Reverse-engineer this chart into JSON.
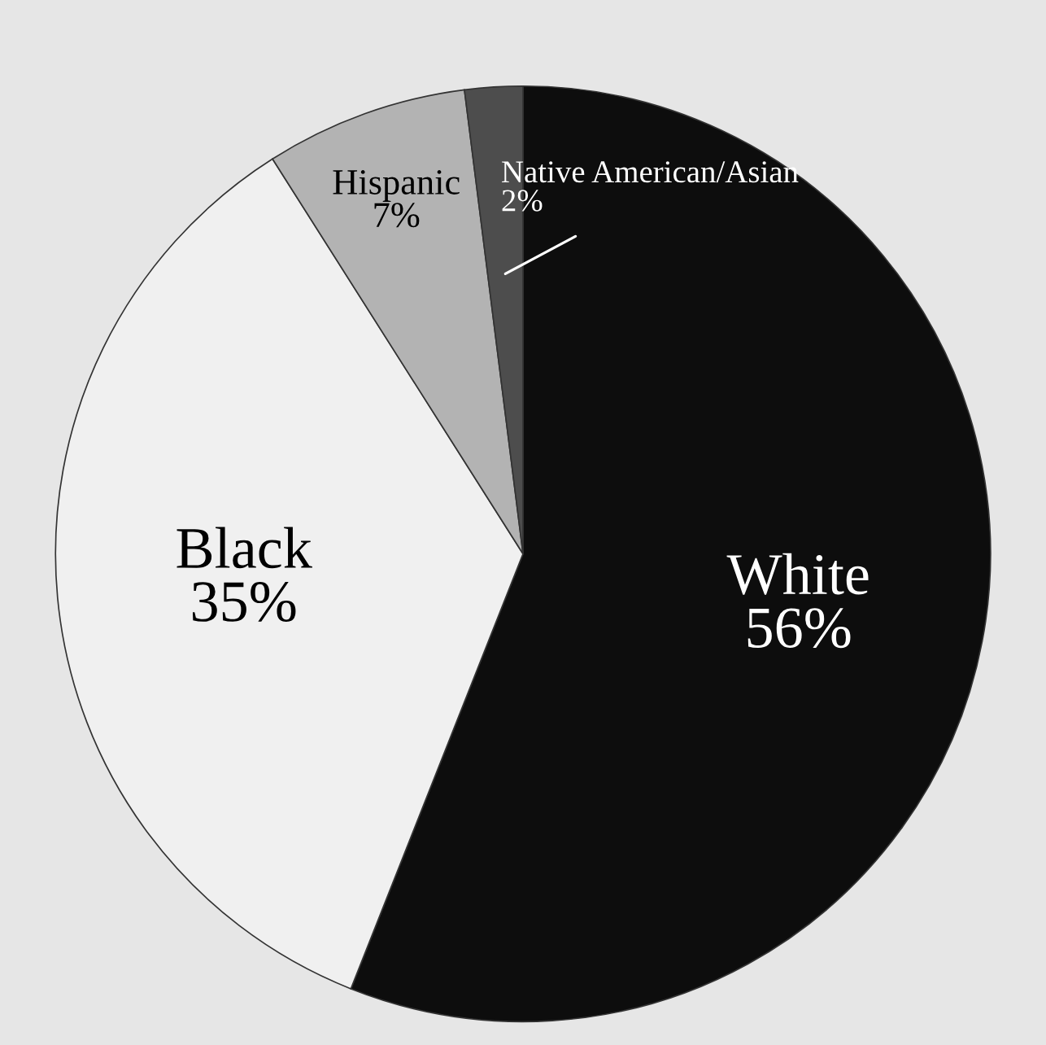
{
  "chart_data": {
    "type": "pie",
    "categories": [
      "White",
      "Black",
      "Hispanic",
      "Native American/Asian"
    ],
    "values": [
      56,
      35,
      7,
      2
    ],
    "value_labels": [
      "56%",
      "35%",
      "7%",
      "2%"
    ],
    "colors": [
      "#0d0d0d",
      "#f0f0f0",
      "#b3b3b3",
      "#4d4d4d"
    ]
  }
}
